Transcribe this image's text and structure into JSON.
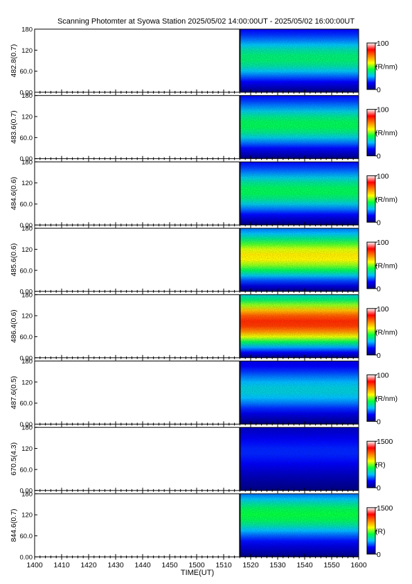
{
  "title": "Scanning Photomter at Syowa Station 2025/05/02 14:00:00UT - 2025/05/02 16:00:00UT",
  "chart_data": {
    "type": "heatmap",
    "xlabel": "TIME(UT)",
    "x_tick_labels": [
      "1400",
      "1410",
      "1420",
      "1430",
      "1440",
      "1450",
      "1500",
      "1510",
      "1520",
      "1530",
      "1540",
      "1550",
      "1600"
    ],
    "y_tick_labels": [
      "0.00",
      "60.0",
      "120",
      "180"
    ],
    "ylim": [
      0,
      180
    ],
    "data_start_time": "1516",
    "colormap": [
      "#000080",
      "#0000ff",
      "#00c0ff",
      "#00ff40",
      "#ffff00",
      "#ff8000",
      "#ff0000",
      "#ffffff"
    ],
    "panels": [
      {
        "label": "482.8(0.7)",
        "colorbar": {
          "max": "100",
          "unit": "(R/nm)",
          "min": "0"
        },
        "max": 100,
        "profile_peak": 40,
        "peak_center": 95
      },
      {
        "label": "483.6(0.7)",
        "colorbar": {
          "max": "100",
          "unit": "(R/nm)",
          "min": "0"
        },
        "max": 100,
        "profile_peak": 42,
        "peak_center": 95
      },
      {
        "label": "484.6(0.6)",
        "colorbar": {
          "max": "100",
          "unit": "(R/nm)",
          "min": "0"
        },
        "max": 100,
        "profile_peak": 42,
        "peak_center": 95
      },
      {
        "label": "485.6(0.6)",
        "colorbar": {
          "max": "100",
          "unit": "(R/nm)",
          "min": "0"
        },
        "max": 100,
        "profile_peak": 60,
        "peak_center": 100
      },
      {
        "label": "486.4(0.6)",
        "colorbar": {
          "max": "100",
          "unit": "(R/nm)",
          "min": "0"
        },
        "max": 100,
        "profile_peak": 82,
        "peak_center": 100
      },
      {
        "label": "487.6(0.5)",
        "colorbar": {
          "max": "100",
          "unit": "(R/nm)",
          "min": "0"
        },
        "max": 100,
        "profile_peak": 32,
        "peak_center": 95
      },
      {
        "label": "670.5(4.3)",
        "colorbar": {
          "max": "1500",
          "unit": "(R)",
          "min": "0"
        },
        "max": 1500,
        "profile_peak": 260,
        "peak_center": 110
      },
      {
        "label": "844.6(0.7)",
        "colorbar": {
          "max": "1500",
          "unit": "(R)",
          "min": "0"
        },
        "max": 1500,
        "profile_peak": 650,
        "peak_center": 120
      }
    ]
  }
}
